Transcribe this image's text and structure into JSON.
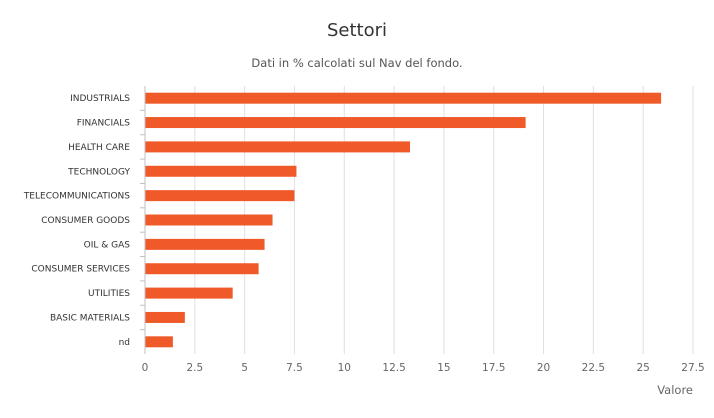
{
  "chart_data": {
    "type": "bar",
    "orientation": "horizontal",
    "title": "Settori",
    "subtitle": "Dati in % calcolati sul Nav del fondo.",
    "xlabel": "",
    "ylabel": "Valore",
    "categories": [
      "INDUSTRIALS",
      "FINANCIALS",
      "HEALTH CARE",
      "TECHNOLOGY",
      "TELECOMMUNICATIONS",
      "CONSUMER GOODS",
      "OIL & GAS",
      "CONSUMER SERVICES",
      "UTILITIES",
      "BASIC MATERIALS",
      "nd"
    ],
    "values": [
      25.9,
      19.1,
      13.3,
      7.6,
      7.5,
      6.4,
      6.0,
      5.7,
      4.4,
      2.0,
      1.4
    ],
    "ylim": [
      0,
      27.5
    ],
    "ticks": [
      "0",
      "2.5",
      "5",
      "7.5",
      "10",
      "12.5",
      "15",
      "17.5",
      "20",
      "22.5",
      "25",
      "27.5"
    ],
    "grid": true,
    "bar_color": "#f05a28"
  }
}
